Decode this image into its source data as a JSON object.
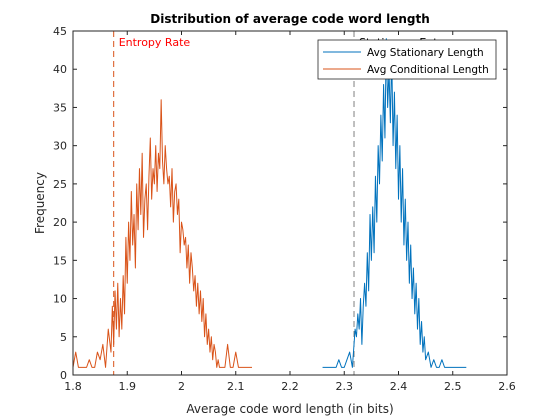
{
  "chart_data": {
    "type": "line",
    "title": "Distribution of average code word length",
    "xlabel": "Average code word length (in bits)",
    "ylabel": "Frequency",
    "xlim": [
      1.8,
      2.6
    ],
    "ylim": [
      0,
      45
    ],
    "xticks": [
      1.8,
      1.9,
      2.0,
      2.1,
      2.2,
      2.3,
      2.4,
      2.5,
      2.6
    ],
    "xtick_labels": [
      "1.8",
      "1.9",
      "2",
      "2.1",
      "2.2",
      "2.3",
      "2.4",
      "2.5",
      "2.6"
    ],
    "yticks": [
      0,
      5,
      10,
      15,
      20,
      25,
      30,
      35,
      40,
      45
    ],
    "ytick_labels": [
      "0",
      "5",
      "10",
      "15",
      "20",
      "25",
      "30",
      "35",
      "40",
      "45"
    ],
    "grid": false,
    "legend_position": "top-right",
    "colors": {
      "stationary": "#0072BD",
      "conditional": "#D95319",
      "entropy_line": "#D95319",
      "stationary_entropy_line": "#808080",
      "entropy_label": "#FF0000",
      "stationary_entropy_label": "#000000"
    },
    "series": [
      {
        "name": "Avg Stationary Length",
        "x": [
          2.26,
          2.27,
          2.275,
          2.28,
          2.285,
          2.29,
          2.295,
          2.3,
          2.305,
          2.31,
          2.315,
          2.32,
          2.3225,
          2.325,
          2.3275,
          2.33,
          2.3325,
          2.335,
          2.3375,
          2.34,
          2.3425,
          2.345,
          2.3475,
          2.35,
          2.3525,
          2.355,
          2.3575,
          2.36,
          2.3625,
          2.365,
          2.3675,
          2.37,
          2.3725,
          2.375,
          2.3775,
          2.38,
          2.3825,
          2.385,
          2.3875,
          2.39,
          2.3925,
          2.395,
          2.3975,
          2.4,
          2.4025,
          2.405,
          2.4075,
          2.41,
          2.4125,
          2.415,
          2.4175,
          2.42,
          2.4225,
          2.425,
          2.4275,
          2.43,
          2.4325,
          2.435,
          2.4375,
          2.44,
          2.4425,
          2.445,
          2.4475,
          2.45,
          2.455,
          2.46,
          2.465,
          2.47,
          2.475,
          2.48,
          2.485,
          2.49,
          2.5,
          2.51,
          2.52,
          2.525
        ],
        "values": [
          1,
          1,
          1,
          1,
          1,
          2,
          1,
          1,
          2,
          3,
          1,
          6,
          5,
          8,
          6,
          10,
          4,
          9,
          12,
          9,
          16,
          11,
          21,
          15,
          22,
          16,
          26,
          20,
          30,
          25,
          34,
          28,
          38,
          31,
          44,
          35,
          40,
          33,
          42,
          30,
          37,
          27,
          34,
          23,
          30,
          20,
          27,
          17,
          23,
          15,
          20,
          12,
          17,
          10,
          14,
          8,
          12,
          6,
          10,
          4,
          7,
          3,
          5,
          2,
          3,
          1,
          2,
          1,
          1,
          2,
          1,
          1,
          1,
          1,
          1,
          1
        ]
      },
      {
        "name": "Avg Conditional Length",
        "x": [
          1.8,
          1.805,
          1.81,
          1.815,
          1.82,
          1.825,
          1.83,
          1.835,
          1.84,
          1.845,
          1.85,
          1.855,
          1.86,
          1.865,
          1.87,
          1.8725,
          1.875,
          1.8775,
          1.88,
          1.8825,
          1.885,
          1.8875,
          1.89,
          1.8925,
          1.895,
          1.8975,
          1.9,
          1.9025,
          1.905,
          1.9075,
          1.91,
          1.9125,
          1.915,
          1.9175,
          1.92,
          1.9225,
          1.925,
          1.9275,
          1.93,
          1.9325,
          1.935,
          1.9375,
          1.94,
          1.9425,
          1.945,
          1.9475,
          1.95,
          1.9525,
          1.955,
          1.9575,
          1.96,
          1.9625,
          1.965,
          1.9675,
          1.97,
          1.9725,
          1.975,
          1.9775,
          1.98,
          1.9825,
          1.985,
          1.9875,
          1.99,
          1.9925,
          1.995,
          1.9975,
          2.0,
          2.0025,
          2.005,
          2.0075,
          2.01,
          2.0125,
          2.015,
          2.0175,
          2.02,
          2.0225,
          2.025,
          2.0275,
          2.03,
          2.0325,
          2.035,
          2.0375,
          2.04,
          2.0425,
          2.045,
          2.0475,
          2.05,
          2.0525,
          2.055,
          2.0575,
          2.06,
          2.0625,
          2.065,
          2.0675,
          2.07,
          2.075,
          2.08,
          2.085,
          2.09,
          2.095,
          2.1,
          2.105,
          2.11,
          2.115,
          2.12,
          2.125,
          2.13
        ],
        "values": [
          1,
          3,
          1,
          1,
          1,
          1,
          2,
          1,
          1,
          3,
          2,
          4,
          1,
          6,
          3,
          9,
          4,
          11,
          6,
          12,
          5,
          10,
          6,
          13,
          8,
          18,
          12,
          20,
          15,
          24,
          17,
          21,
          14,
          25,
          19,
          27,
          21,
          29,
          18,
          23,
          25,
          19,
          26,
          31,
          23,
          27,
          25,
          30,
          24,
          29,
          27,
          36,
          28,
          25,
          30,
          27,
          25,
          26,
          22,
          27,
          20,
          24,
          25,
          21,
          23,
          16,
          20,
          19,
          17,
          18,
          14,
          17,
          12,
          16,
          14,
          11,
          13,
          9,
          12,
          8,
          11,
          7,
          10,
          5,
          8,
          4,
          6,
          3,
          5,
          2,
          4,
          3,
          1,
          2,
          1,
          1,
          1,
          4,
          1,
          1,
          3,
          1,
          1,
          1,
          1,
          1,
          1
        ]
      }
    ],
    "reference_lines": [
      {
        "x": 1.875,
        "label": "Entropy Rate"
      },
      {
        "x": 2.318,
        "label": "Stationary Entropy"
      }
    ]
  }
}
